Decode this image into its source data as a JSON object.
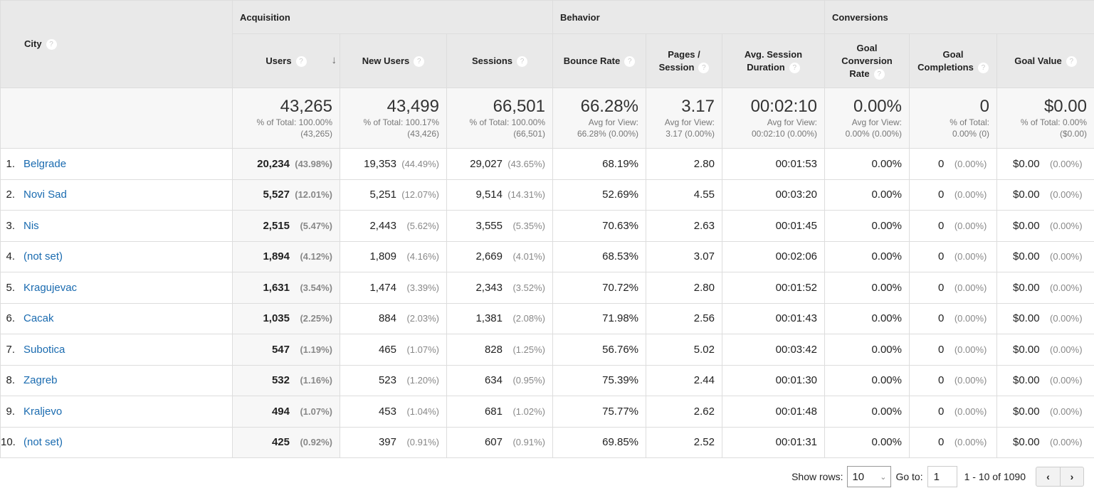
{
  "header": {
    "city": "City",
    "groups": [
      "Acquisition",
      "Behavior",
      "Conversions"
    ],
    "columns": [
      "Users",
      "New Users",
      "Sessions",
      "Bounce Rate",
      "Pages / Session",
      "Avg. Session Duration",
      "Goal Conversion Rate",
      "Goal Completions",
      "Goal Value"
    ],
    "help_icon": "?",
    "sort_icon": "arrow-down"
  },
  "totals": [
    {
      "big": "43,265",
      "l1": "% of Total: 100.00%",
      "l2": "(43,265)"
    },
    {
      "big": "43,499",
      "l1": "% of Total: 100.17%",
      "l2": "(43,426)"
    },
    {
      "big": "66,501",
      "l1": "% of Total: 100.00%",
      "l2": "(66,501)"
    },
    {
      "big": "66.28%",
      "l1": "Avg for View:",
      "l2": "66.28% (0.00%)"
    },
    {
      "big": "3.17",
      "l1": "Avg for View:",
      "l2": "3.17 (0.00%)"
    },
    {
      "big": "00:02:10",
      "l1": "Avg for View:",
      "l2": "00:02:10 (0.00%)"
    },
    {
      "big": "0.00%",
      "l1": "Avg for View:",
      "l2": "0.00% (0.00%)"
    },
    {
      "big": "0",
      "l1": "% of Total:",
      "l2": "0.00% (0)"
    },
    {
      "big": "$0.00",
      "l1": "% of Total: 0.00%",
      "l2": "($0.00)"
    }
  ],
  "rows": [
    {
      "n": "1.",
      "city": "Belgrade",
      "users": "20,234",
      "users_p": "(43.98%)",
      "new": "19,353",
      "new_p": "(44.49%)",
      "sess": "29,027",
      "sess_p": "(43.65%)",
      "bounce": "68.19%",
      "pps": "2.80",
      "dur": "00:01:53",
      "gcr": "0.00%",
      "gc": "0",
      "gc_p": "(0.00%)",
      "gv": "$0.00",
      "gv_p": "(0.00%)"
    },
    {
      "n": "2.",
      "city": "Novi Sad",
      "users": "5,527",
      "users_p": "(12.01%)",
      "new": "5,251",
      "new_p": "(12.07%)",
      "sess": "9,514",
      "sess_p": "(14.31%)",
      "bounce": "52.69%",
      "pps": "4.55",
      "dur": "00:03:20",
      "gcr": "0.00%",
      "gc": "0",
      "gc_p": "(0.00%)",
      "gv": "$0.00",
      "gv_p": "(0.00%)"
    },
    {
      "n": "3.",
      "city": "Nis",
      "users": "2,515",
      "users_p": "(5.47%)",
      "new": "2,443",
      "new_p": "(5.62%)",
      "sess": "3,555",
      "sess_p": "(5.35%)",
      "bounce": "70.63%",
      "pps": "2.63",
      "dur": "00:01:45",
      "gcr": "0.00%",
      "gc": "0",
      "gc_p": "(0.00%)",
      "gv": "$0.00",
      "gv_p": "(0.00%)"
    },
    {
      "n": "4.",
      "city": "(not set)",
      "users": "1,894",
      "users_p": "(4.12%)",
      "new": "1,809",
      "new_p": "(4.16%)",
      "sess": "2,669",
      "sess_p": "(4.01%)",
      "bounce": "68.53%",
      "pps": "3.07",
      "dur": "00:02:06",
      "gcr": "0.00%",
      "gc": "0",
      "gc_p": "(0.00%)",
      "gv": "$0.00",
      "gv_p": "(0.00%)"
    },
    {
      "n": "5.",
      "city": "Kragujevac",
      "users": "1,631",
      "users_p": "(3.54%)",
      "new": "1,474",
      "new_p": "(3.39%)",
      "sess": "2,343",
      "sess_p": "(3.52%)",
      "bounce": "70.72%",
      "pps": "2.80",
      "dur": "00:01:52",
      "gcr": "0.00%",
      "gc": "0",
      "gc_p": "(0.00%)",
      "gv": "$0.00",
      "gv_p": "(0.00%)"
    },
    {
      "n": "6.",
      "city": "Cacak",
      "users": "1,035",
      "users_p": "(2.25%)",
      "new": "884",
      "new_p": "(2.03%)",
      "sess": "1,381",
      "sess_p": "(2.08%)",
      "bounce": "71.98%",
      "pps": "2.56",
      "dur": "00:01:43",
      "gcr": "0.00%",
      "gc": "0",
      "gc_p": "(0.00%)",
      "gv": "$0.00",
      "gv_p": "(0.00%)"
    },
    {
      "n": "7.",
      "city": "Subotica",
      "users": "547",
      "users_p": "(1.19%)",
      "new": "465",
      "new_p": "(1.07%)",
      "sess": "828",
      "sess_p": "(1.25%)",
      "bounce": "56.76%",
      "pps": "5.02",
      "dur": "00:03:42",
      "gcr": "0.00%",
      "gc": "0",
      "gc_p": "(0.00%)",
      "gv": "$0.00",
      "gv_p": "(0.00%)"
    },
    {
      "n": "8.",
      "city": "Zagreb",
      "users": "532",
      "users_p": "(1.16%)",
      "new": "523",
      "new_p": "(1.20%)",
      "sess": "634",
      "sess_p": "(0.95%)",
      "bounce": "75.39%",
      "pps": "2.44",
      "dur": "00:01:30",
      "gcr": "0.00%",
      "gc": "0",
      "gc_p": "(0.00%)",
      "gv": "$0.00",
      "gv_p": "(0.00%)"
    },
    {
      "n": "9.",
      "city": "Kraljevo",
      "users": "494",
      "users_p": "(1.07%)",
      "new": "453",
      "new_p": "(1.04%)",
      "sess": "681",
      "sess_p": "(1.02%)",
      "bounce": "75.77%",
      "pps": "2.62",
      "dur": "00:01:48",
      "gcr": "0.00%",
      "gc": "0",
      "gc_p": "(0.00%)",
      "gv": "$0.00",
      "gv_p": "(0.00%)"
    },
    {
      "n": "10.",
      "city": "(not set)",
      "users": "425",
      "users_p": "(0.92%)",
      "new": "397",
      "new_p": "(0.91%)",
      "sess": "607",
      "sess_p": "(0.91%)",
      "bounce": "69.85%",
      "pps": "2.52",
      "dur": "00:01:31",
      "gcr": "0.00%",
      "gc": "0",
      "gc_p": "(0.00%)",
      "gv": "$0.00",
      "gv_p": "(0.00%)"
    }
  ],
  "footer": {
    "show_rows_label": "Show rows:",
    "show_rows_value": "10",
    "goto_label": "Go to:",
    "goto_value": "1",
    "range": "1 - 10 of 1090",
    "prev": "‹",
    "next": "›"
  }
}
